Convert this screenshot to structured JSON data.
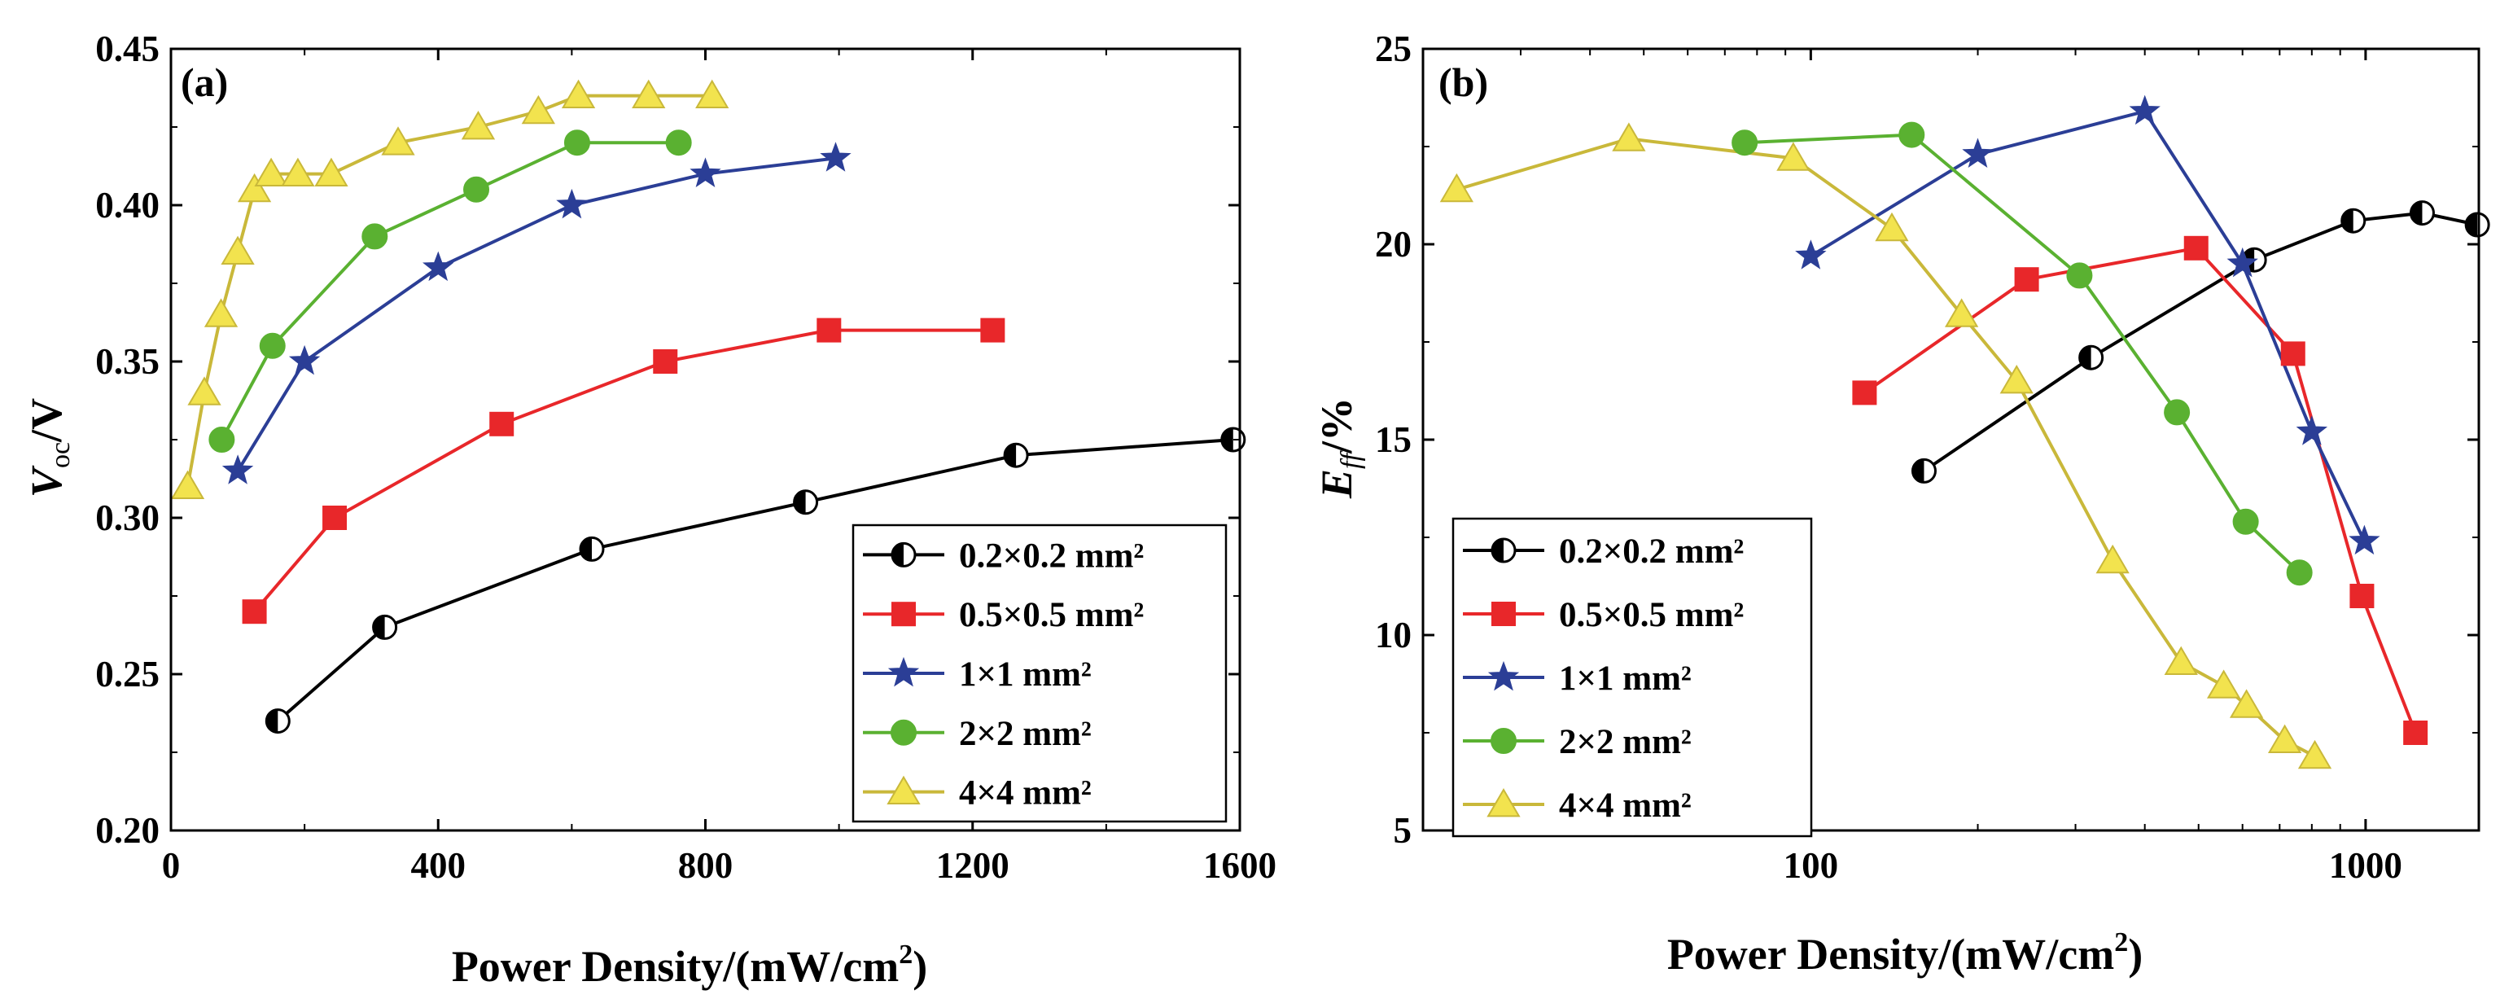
{
  "chart_data": [
    {
      "panel_label": "(a)",
      "type": "line",
      "x_scale": "linear",
      "xlabel": "Power Density/(mW/cm²)",
      "ylabel": "V_oc/V",
      "xlim": [
        0,
        1600
      ],
      "ylim": [
        0.2,
        0.45
      ],
      "x_ticks": [
        0,
        400,
        800,
        1200,
        1600
      ],
      "y_ticks": [
        0.2,
        0.25,
        0.3,
        0.35,
        0.4,
        0.45
      ],
      "x_tick_labels": [
        "0",
        "400",
        "800",
        "1200",
        "1600"
      ],
      "y_tick_labels": [
        "0.20",
        "0.25",
        "0.30",
        "0.35",
        "0.40",
        "0.45"
      ],
      "legend_position": "lower-right",
      "series": [
        {
          "name": "0.2×0.2 mm²",
          "marker": "halfcircle",
          "color": "#000000",
          "x": [
            160,
            320,
            630,
            950,
            1265,
            1590
          ],
          "y": [
            0.235,
            0.265,
            0.29,
            0.305,
            0.32,
            0.325
          ]
        },
        {
          "name": "0.5×0.5 mm²",
          "marker": "square",
          "color": "#e8272a",
          "x": [
            125,
            245,
            495,
            740,
            985,
            1230
          ],
          "y": [
            0.27,
            0.3,
            0.33,
            0.35,
            0.36,
            0.36
          ]
        },
        {
          "name": "1×1 mm²",
          "marker": "star",
          "color": "#2b3e96",
          "x": [
            100,
            200,
            400,
            600,
            800,
            995
          ],
          "y": [
            0.315,
            0.35,
            0.38,
            0.4,
            0.41,
            0.415
          ]
        },
        {
          "name": "2×2 mm²",
          "marker": "circle",
          "color": "#5ab131",
          "x": [
            76,
            152,
            305,
            457,
            608,
            760
          ],
          "y": [
            0.325,
            0.355,
            0.39,
            0.405,
            0.42,
            0.42
          ]
        },
        {
          "name": "4×4 mm²",
          "marker": "triangle",
          "color": "#f2e34e",
          "x": [
            25,
            50,
            75,
            100,
            125,
            150,
            190,
            240,
            340,
            460,
            550,
            610,
            715,
            810
          ],
          "y": [
            0.31,
            0.34,
            0.365,
            0.385,
            0.405,
            0.41,
            0.41,
            0.41,
            0.42,
            0.425,
            0.43,
            0.435,
            0.435,
            0.435
          ]
        }
      ]
    },
    {
      "panel_label": "(b)",
      "type": "line",
      "x_scale": "log",
      "xlabel": "Power Density/(mW/cm²)",
      "ylabel": "E_ff/%",
      "xlim": [
        20,
        1600
      ],
      "ylim": [
        5,
        25
      ],
      "x_ticks": [
        100,
        1000
      ],
      "y_ticks": [
        5,
        10,
        15,
        20,
        25
      ],
      "x_tick_labels": [
        "100",
        "1000"
      ],
      "y_tick_labels": [
        "5",
        "10",
        "15",
        "20",
        "25"
      ],
      "legend_position": "lower-left",
      "series": [
        {
          "name": "0.2×0.2 mm²",
          "marker": "halfcircle",
          "color": "#000000",
          "x": [
            160,
            320,
            630,
            950,
            1265,
            1590
          ],
          "y": [
            14.2,
            17.1,
            19.6,
            20.6,
            20.8,
            20.5
          ]
        },
        {
          "name": "0.5×0.5 mm²",
          "marker": "square",
          "color": "#e8272a",
          "x": [
            125,
            245,
            495,
            740,
            985,
            1230
          ],
          "y": [
            16.2,
            19.1,
            19.9,
            17.2,
            11.0,
            7.5
          ]
        },
        {
          "name": "1×1 mm²",
          "marker": "star",
          "color": "#2b3e96",
          "x": [
            100,
            200,
            400,
            600,
            800,
            995
          ],
          "y": [
            19.7,
            22.3,
            23.4,
            19.5,
            15.2,
            12.4
          ]
        },
        {
          "name": "2×2 mm²",
          "marker": "circle",
          "color": "#5ab131",
          "x": [
            76,
            152,
            305,
            457,
            608,
            760
          ],
          "y": [
            22.6,
            22.8,
            19.2,
            15.7,
            12.9,
            11.6
          ]
        },
        {
          "name": "4×4 mm²",
          "marker": "triangle",
          "color": "#f2e34e",
          "x": [
            23,
            47,
            93,
            140,
            187,
            235,
            350,
            465,
            555,
            610,
            715,
            810
          ],
          "y": [
            21.4,
            22.7,
            22.2,
            20.4,
            18.2,
            16.5,
            11.9,
            9.3,
            8.7,
            8.2,
            7.3,
            6.9
          ]
        }
      ]
    }
  ]
}
